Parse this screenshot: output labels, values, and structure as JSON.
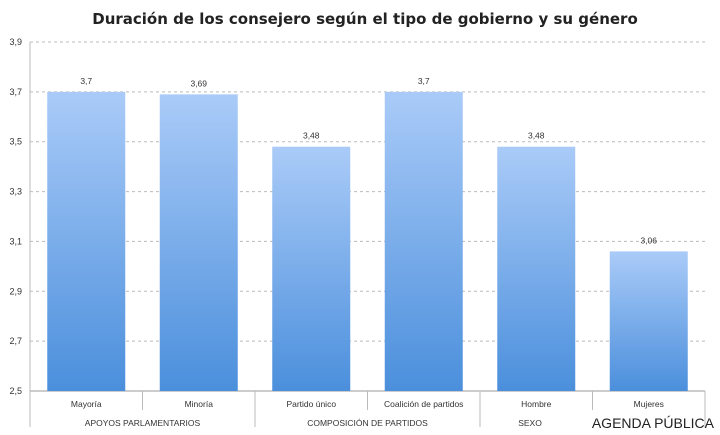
{
  "chart_data": {
    "type": "bar",
    "title": "Duración de los consejero según el tipo de gobierno y su género",
    "categories": [
      "Mayoría",
      "Minoría",
      "Partido único",
      "Coalición de partidos",
      "Hombre",
      "Mujeres"
    ],
    "groups": [
      {
        "label": "APOYOS PARLAMENTARIOS",
        "span": 2
      },
      {
        "label": "COMPOSICIÓN DE PARTIDOS",
        "span": 2
      },
      {
        "label": "SEXO",
        "span": 2
      }
    ],
    "values": [
      3.7,
      3.69,
      3.48,
      3.7,
      3.48,
      3.06
    ],
    "value_labels": [
      "3,7",
      "3,69",
      "3,48",
      "3,7",
      "3,48",
      "3,06"
    ],
    "yticks": [
      "2,5",
      "2,7",
      "2,9",
      "3,1",
      "3,3",
      "3,5",
      "3,7",
      "3,9"
    ],
    "ylim": [
      2.5,
      3.9
    ],
    "grid": true,
    "colors": {
      "bar_top": "#aacbf8",
      "bar_bottom": "#4b8fdc"
    }
  },
  "watermark": "AGENDA PÚBLICA"
}
